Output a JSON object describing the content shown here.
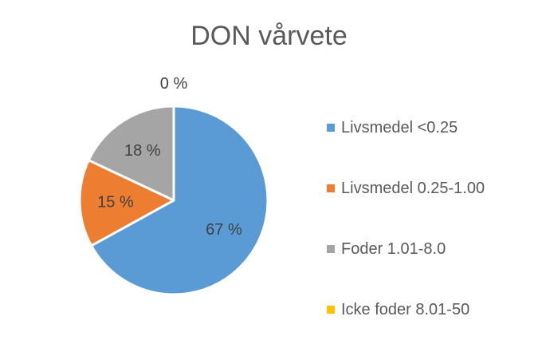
{
  "chart_data": {
    "type": "pie",
    "title": "DON vårvete",
    "categories": [
      "Livsmedel <0.25",
      "Livsmedel 0.25-1.00",
      "Foder 1.01-8.0",
      "Icke foder 8.01-50"
    ],
    "values": [
      67,
      15,
      18,
      0
    ],
    "labels": [
      "67 %",
      "15 %",
      "18 %",
      "0 %"
    ],
    "colors": [
      "#5B9BD5",
      "#ED7D31",
      "#A5A5A5",
      "#FFC000"
    ],
    "legend_position": "right"
  }
}
